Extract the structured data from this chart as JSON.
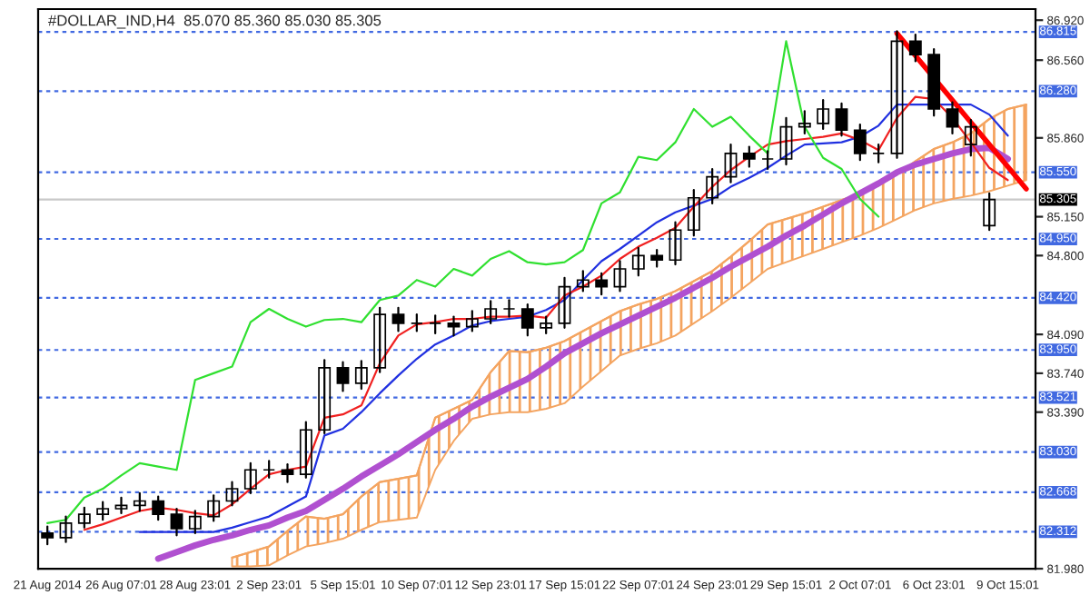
{
  "chart_data": {
    "type": "candlestick",
    "title": "#DOLLAR_IND,H4  85.070 85.360 85.030 85.305",
    "categories": [
      "21 Aug 2014",
      null,
      null,
      null,
      "26 Aug 07:01",
      null,
      null,
      null,
      "28 Aug 23:01",
      null,
      null,
      null,
      "2 Sep 23:01",
      null,
      null,
      null,
      "5 Sep 15:01",
      null,
      null,
      null,
      "10 Sep 07:01",
      null,
      null,
      null,
      "12 Sep 23:01",
      null,
      null,
      null,
      "17 Sep 15:01",
      null,
      null,
      null,
      "22 Sep 07:01",
      null,
      null,
      null,
      "24 Sep 23:01",
      null,
      null,
      null,
      "29 Sep 15:01",
      null,
      null,
      null,
      "2 Oct 07:01",
      null,
      null,
      null,
      "6 Oct 23:01",
      null,
      null,
      null,
      "9 Oct 15:01",
      null
    ],
    "ohlc": [
      [
        82.3,
        82.36,
        82.2,
        82.26
      ],
      [
        82.26,
        82.45,
        82.22,
        82.39
      ],
      [
        82.39,
        82.53,
        82.35,
        82.47
      ],
      [
        82.47,
        82.58,
        82.42,
        82.52
      ],
      [
        82.52,
        82.62,
        82.48,
        82.55
      ],
      [
        82.55,
        82.66,
        82.5,
        82.59
      ],
      [
        82.59,
        82.63,
        82.42,
        82.47
      ],
      [
        82.47,
        82.52,
        82.28,
        82.34
      ],
      [
        82.34,
        82.5,
        82.3,
        82.45
      ],
      [
        82.45,
        82.64,
        82.41,
        82.59
      ],
      [
        82.59,
        82.76,
        82.55,
        82.7
      ],
      [
        82.7,
        82.93,
        82.66,
        82.87
      ],
      [
        82.87,
        82.95,
        82.8,
        82.87
      ],
      [
        82.87,
        82.92,
        82.76,
        82.83
      ],
      [
        82.83,
        83.3,
        82.8,
        83.23
      ],
      [
        83.23,
        83.86,
        83.2,
        83.79
      ],
      [
        83.79,
        83.84,
        83.58,
        83.65
      ],
      [
        83.65,
        83.85,
        83.6,
        83.79
      ],
      [
        83.79,
        84.33,
        83.75,
        84.27
      ],
      [
        84.27,
        84.33,
        84.12,
        84.19
      ],
      [
        84.19,
        84.27,
        84.12,
        84.19
      ],
      [
        84.19,
        84.26,
        84.1,
        84.19
      ],
      [
        84.19,
        84.25,
        84.08,
        84.16
      ],
      [
        84.16,
        84.3,
        84.12,
        84.23
      ],
      [
        84.23,
        84.39,
        84.19,
        84.32
      ],
      [
        84.32,
        84.4,
        84.25,
        84.32
      ],
      [
        84.32,
        84.36,
        84.08,
        84.15
      ],
      [
        84.15,
        84.25,
        84.1,
        84.19
      ],
      [
        84.19,
        84.6,
        84.15,
        84.52
      ],
      [
        84.52,
        84.66,
        84.48,
        84.58
      ],
      [
        84.58,
        84.64,
        84.45,
        84.52
      ],
      [
        84.52,
        84.75,
        84.48,
        84.68
      ],
      [
        84.68,
        84.87,
        84.62,
        84.8
      ],
      [
        84.8,
        84.85,
        84.7,
        84.76
      ],
      [
        84.76,
        85.1,
        84.72,
        85.03
      ],
      [
        85.03,
        85.39,
        84.98,
        85.32
      ],
      [
        85.32,
        85.58,
        85.27,
        85.51
      ],
      [
        85.51,
        85.8,
        85.46,
        85.72
      ],
      [
        85.72,
        85.78,
        85.6,
        85.67
      ],
      [
        85.67,
        85.74,
        85.58,
        85.67
      ],
      [
        85.67,
        86.04,
        85.62,
        85.96
      ],
      [
        85.96,
        86.1,
        85.9,
        85.99
      ],
      [
        85.99,
        86.2,
        85.94,
        86.12
      ],
      [
        86.12,
        86.17,
        85.88,
        85.93
      ],
      [
        85.93,
        85.98,
        85.66,
        85.72
      ],
      [
        85.72,
        85.8,
        85.64,
        85.72
      ],
      [
        85.72,
        86.82,
        85.68,
        86.73
      ],
      [
        86.73,
        86.79,
        86.55,
        86.61
      ],
      [
        86.61,
        86.66,
        86.06,
        86.12
      ],
      [
        86.12,
        86.18,
        85.9,
        85.96
      ],
      [
        85.8,
        86.02,
        85.7,
        85.96
      ],
      [
        85.07,
        85.36,
        85.03,
        85.305
      ],
      null,
      null
    ],
    "series": [
      {
        "type": "line",
        "color": "#f4a460",
        "upper": [
          null,
          null,
          null,
          null,
          null,
          null,
          null,
          null,
          null,
          null,
          82.08,
          82.13,
          82.18,
          82.32,
          82.45,
          82.43,
          82.47,
          82.63,
          82.76,
          82.79,
          82.82,
          83.34,
          83.42,
          83.5,
          83.75,
          83.94,
          83.93,
          83.97,
          84.03,
          84.12,
          84.21,
          84.3,
          84.36,
          84.41,
          84.48,
          84.57,
          84.66,
          84.79,
          84.93,
          85.08,
          85.13,
          85.18,
          85.24,
          85.3,
          85.36,
          85.43,
          85.53,
          85.65,
          85.76,
          85.82,
          85.9,
          86.03,
          86.12,
          86.16
        ],
        "values": [
          null,
          null,
          null,
          null,
          null,
          null,
          null,
          null,
          null,
          null,
          82.08,
          82.13,
          82.18,
          82.32,
          82.45,
          82.43,
          82.47,
          82.63,
          82.76,
          82.79,
          82.82,
          83.34,
          83.42,
          83.5,
          83.75,
          83.94,
          83.93,
          83.97,
          84.03,
          84.12,
          84.21,
          84.3,
          84.36,
          84.41,
          84.48,
          84.57,
          84.66,
          84.79,
          84.93,
          85.08,
          85.13,
          85.18,
          85.24,
          85.3,
          85.36,
          85.43,
          85.53,
          85.65,
          85.76,
          85.82,
          85.9,
          86.03,
          86.12,
          86.16
        ],
        "lower": [
          null,
          null,
          null,
          null,
          null,
          null,
          null,
          null,
          null,
          null,
          82.0,
          82.0,
          82.01,
          82.1,
          82.18,
          82.21,
          82.25,
          82.33,
          82.4,
          82.42,
          82.44,
          82.87,
          83.13,
          83.33,
          83.37,
          83.39,
          83.39,
          83.42,
          83.47,
          83.62,
          83.76,
          83.9,
          83.96,
          84.01,
          84.08,
          84.19,
          84.3,
          84.42,
          84.55,
          84.68,
          84.74,
          84.8,
          84.86,
          84.92,
          84.98,
          85.05,
          85.13,
          85.21,
          85.27,
          85.31,
          85.34,
          85.38,
          85.43,
          85.48
        ]
      },
      {
        "type": "line",
        "color": "#b050d0",
        "values": [
          null,
          null,
          null,
          null,
          null,
          null,
          82.07,
          82.13,
          82.19,
          82.24,
          82.28,
          82.33,
          82.37,
          82.44,
          82.5,
          82.6,
          82.7,
          82.81,
          82.91,
          83.01,
          83.12,
          83.23,
          83.33,
          83.44,
          83.53,
          83.61,
          83.69,
          83.8,
          83.92,
          84.01,
          84.1,
          84.18,
          84.26,
          84.34,
          84.42,
          84.51,
          84.6,
          84.7,
          84.79,
          84.88,
          84.98,
          85.07,
          85.17,
          85.27,
          85.36,
          85.45,
          85.55,
          85.62,
          85.67,
          85.72,
          85.76,
          85.77,
          85.67,
          null
        ]
      },
      {
        "type": "line",
        "color": "#2030e0",
        "values": [
          null,
          null,
          null,
          null,
          null,
          82.31,
          82.31,
          82.31,
          82.31,
          82.31,
          82.35,
          82.4,
          82.45,
          82.54,
          82.63,
          83.18,
          83.24,
          83.39,
          83.56,
          83.72,
          83.87,
          84.0,
          84.08,
          84.17,
          84.21,
          84.23,
          84.25,
          84.31,
          84.4,
          84.58,
          84.75,
          84.86,
          84.98,
          85.1,
          85.19,
          85.25,
          85.31,
          85.42,
          85.5,
          85.59,
          85.7,
          85.8,
          85.81,
          85.82,
          85.87,
          85.97,
          86.16,
          86.16,
          86.16,
          86.16,
          86.16,
          86.07,
          85.88,
          null
        ]
      },
      {
        "type": "line",
        "color": "#f02020",
        "values": [
          null,
          null,
          82.33,
          82.38,
          82.44,
          82.5,
          82.53,
          82.51,
          82.48,
          82.46,
          82.56,
          82.7,
          82.83,
          82.87,
          82.9,
          83.34,
          83.37,
          83.45,
          83.83,
          84.08,
          84.18,
          84.2,
          84.23,
          84.23,
          84.25,
          84.25,
          84.26,
          84.24,
          84.44,
          84.52,
          84.62,
          84.77,
          84.88,
          84.96,
          85.05,
          85.24,
          85.42,
          85.57,
          85.69,
          85.8,
          85.83,
          85.85,
          85.87,
          85.9,
          85.84,
          85.75,
          86.04,
          86.23,
          86.21,
          86.04,
          85.82,
          85.59,
          85.48,
          null
        ]
      },
      {
        "type": "line",
        "color": "#30e030",
        "values": [
          82.39,
          82.42,
          82.62,
          82.7,
          82.82,
          82.93,
          82.9,
          82.87,
          83.68,
          83.74,
          83.8,
          84.2,
          84.32,
          84.23,
          84.16,
          84.22,
          84.23,
          84.2,
          84.4,
          84.44,
          84.58,
          84.52,
          84.68,
          84.62,
          84.77,
          84.84,
          84.74,
          84.72,
          84.74,
          84.85,
          85.27,
          85.37,
          85.69,
          85.66,
          85.82,
          86.12,
          85.96,
          86.05,
          85.88,
          85.72,
          86.73,
          85.96,
          85.68,
          85.58,
          85.31,
          85.15,
          null,
          null,
          null,
          null,
          null,
          null,
          null,
          null
        ]
      },
      {
        "type": "line",
        "color": "#ff0000",
        "values": [
          null,
          null,
          null,
          null,
          null,
          null,
          null,
          null,
          null,
          null,
          null,
          null,
          null,
          null,
          null,
          null,
          null,
          null,
          null,
          null,
          null,
          null,
          null,
          null,
          null,
          null,
          null,
          null,
          null,
          null,
          null,
          null,
          null,
          null,
          null,
          null,
          null,
          null,
          null,
          null,
          null,
          null,
          null,
          null,
          null,
          null,
          86.8,
          86.6,
          86.4,
          86.2,
          86.0,
          85.8,
          85.6,
          85.4
        ]
      }
    ],
    "ylim": [
      81.98,
      87.02
    ],
    "yticks": [
      {
        "value": 86.92,
        "label": "86.920"
      },
      {
        "value": 86.56,
        "label": "86.560"
      },
      {
        "value": 85.86,
        "label": "85.860"
      },
      {
        "value": 85.15,
        "label": "85.150"
      },
      {
        "value": 84.8,
        "label": "84.800"
      },
      {
        "value": 84.09,
        "label": "84.090"
      },
      {
        "value": 83.74,
        "label": "83.740"
      },
      {
        "value": 83.39,
        "label": "83.390"
      },
      {
        "value": 81.98,
        "label": "81.980"
      }
    ],
    "ref_lines": [
      {
        "axis": "y",
        "value": 86.815,
        "label": "86.815",
        "color": "#4169e1",
        "line_style": "dotted"
      },
      {
        "axis": "y",
        "value": 86.28,
        "label": "86.280",
        "color": "#4169e1",
        "line_style": "dotted"
      },
      {
        "axis": "y",
        "value": 85.55,
        "label": "85.550",
        "color": "#4169e1",
        "line_style": "dotted"
      },
      {
        "axis": "y",
        "value": 85.305,
        "label": "85.305",
        "color": "#c8c8c8",
        "line_style": "solid"
      },
      {
        "axis": "y",
        "value": 84.95,
        "label": "84.950",
        "color": "#4169e1",
        "line_style": "dotted"
      },
      {
        "axis": "y",
        "value": 84.42,
        "label": "84.420",
        "color": "#4169e1",
        "line_style": "dotted"
      },
      {
        "axis": "y",
        "value": 83.95,
        "label": "83.950",
        "color": "#4169e1",
        "line_style": "dotted"
      },
      {
        "axis": "y",
        "value": 83.521,
        "label": "83.521",
        "color": "#4169e1",
        "line_style": "dotted"
      },
      {
        "axis": "y",
        "value": 83.03,
        "label": "83.030",
        "color": "#4169e1",
        "line_style": "dotted"
      },
      {
        "axis": "y",
        "value": 82.668,
        "label": "82.668",
        "color": "#4169e1",
        "line_style": "dotted"
      },
      {
        "axis": "y",
        "value": 82.312,
        "label": "82.312",
        "color": "#4169e1",
        "line_style": "dotted"
      }
    ],
    "grid": false,
    "legend": false
  }
}
